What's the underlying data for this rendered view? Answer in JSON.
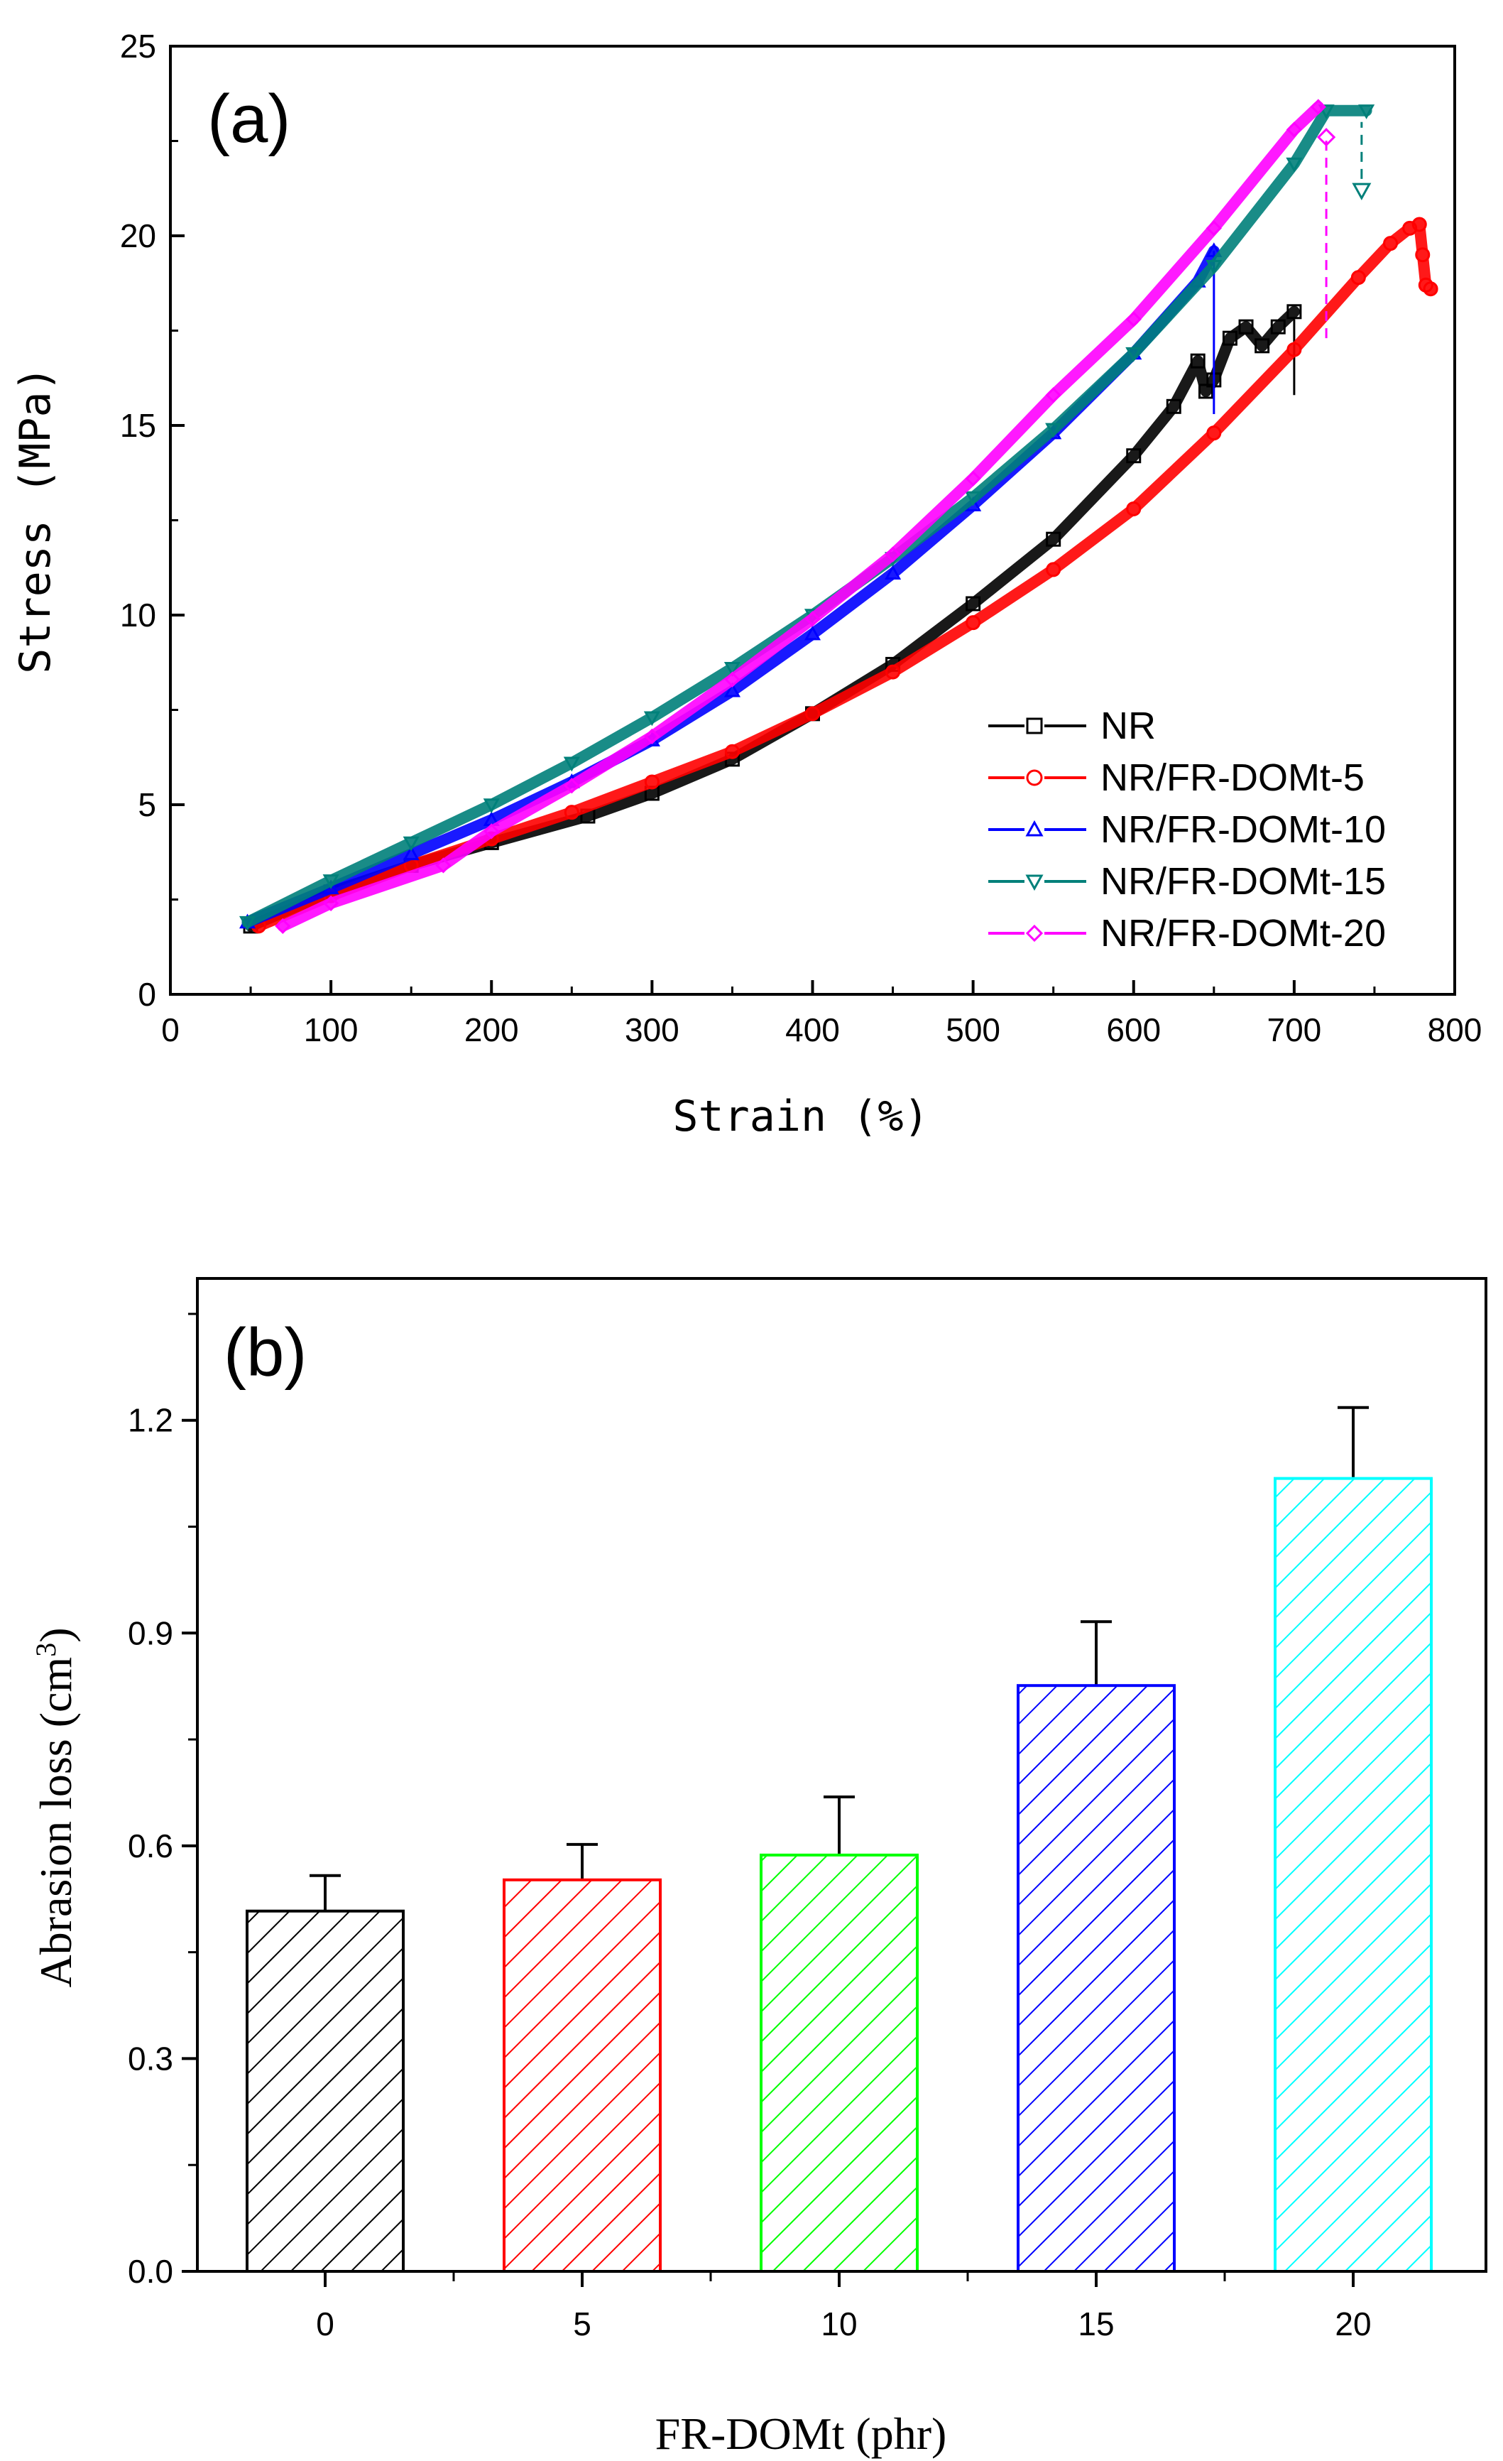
{
  "chart_data": [
    {
      "type": "line",
      "panel_label": "(a)",
      "xlabel": "Strain (%)",
      "ylabel": "Stress (MPa)",
      "xlim": [
        0,
        800
      ],
      "ylim": [
        0,
        25
      ],
      "xticks": [
        "0",
        "100",
        "200",
        "300",
        "400",
        "500",
        "600",
        "700",
        "800"
      ],
      "yticks": [
        "0",
        "5",
        "10",
        "15",
        "20",
        "25"
      ],
      "legend_position": "bottom-right",
      "series": [
        {
          "name": "NR",
          "color": "#000000",
          "marker": "square",
          "x": [
            50,
            100,
            150,
            200,
            260,
            300,
            350,
            400,
            450,
            500,
            550,
            600,
            625,
            640,
            645,
            650,
            660,
            670,
            680,
            690,
            700
          ],
          "y": [
            1.8,
            2.7,
            3.4,
            4.0,
            4.7,
            5.3,
            6.2,
            7.4,
            8.7,
            10.3,
            12.0,
            14.2,
            15.5,
            16.7,
            15.9,
            16.2,
            17.3,
            17.6,
            17.1,
            17.6,
            18.0
          ],
          "break_x": 700,
          "break_y": [
            15.8,
            17.8
          ]
        },
        {
          "name": "NR/FR-DOMt-5",
          "color": "#ff0000",
          "marker": "circle",
          "x": [
            55,
            100,
            150,
            200,
            250,
            300,
            350,
            400,
            450,
            500,
            550,
            600,
            650,
            700,
            740,
            760,
            772,
            778,
            780,
            782,
            785
          ],
          "y": [
            1.8,
            2.6,
            3.4,
            4.1,
            4.8,
            5.6,
            6.4,
            7.4,
            8.5,
            9.8,
            11.2,
            12.8,
            14.8,
            17.0,
            18.9,
            19.8,
            20.2,
            20.3,
            19.5,
            18.7,
            18.6
          ]
        },
        {
          "name": "NR/FR-DOMt-10",
          "color": "#0000ff",
          "marker": "triangle-up",
          "x": [
            48,
            100,
            150,
            200,
            250,
            300,
            350,
            400,
            450,
            500,
            550,
            600,
            640,
            650
          ],
          "y": [
            1.9,
            2.8,
            3.7,
            4.6,
            5.6,
            6.7,
            8.0,
            9.5,
            11.1,
            12.9,
            14.8,
            16.9,
            18.8,
            19.6
          ],
          "break_x": 650,
          "break_y": [
            15.3,
            19.6
          ]
        },
        {
          "name": "NR/FR-DOMt-15",
          "color": "#00807a",
          "marker": "triangle-down",
          "x": [
            48,
            100,
            150,
            200,
            250,
            300,
            350,
            400,
            450,
            500,
            550,
            600,
            650,
            700,
            720,
            745
          ],
          "y": [
            1.9,
            3.0,
            4.0,
            5.0,
            6.1,
            7.3,
            8.6,
            10.0,
            11.5,
            13.1,
            14.9,
            16.9,
            19.2,
            21.9,
            23.3,
            23.3
          ],
          "break_x": 742,
          "break_y": [
            21.5,
            23.0
          ],
          "break_marker_y": 21.2
        },
        {
          "name": "NR/FR-DOMt-20",
          "color": "#ff00ff",
          "marker": "diamond",
          "x": [
            70,
            100,
            170,
            200,
            250,
            300,
            350,
            400,
            450,
            500,
            550,
            600,
            650,
            700,
            715
          ],
          "y": [
            1.8,
            2.4,
            3.4,
            4.3,
            5.5,
            6.8,
            8.3,
            9.9,
            11.6,
            13.6,
            15.8,
            17.8,
            20.2,
            22.8,
            23.4
          ],
          "break_x": 720,
          "break_y": [
            17.3,
            22.6
          ],
          "break_marker_y": 22.6
        }
      ]
    },
    {
      "type": "bar",
      "panel_label": "(b)",
      "xlabel": "FR-DOMt (phr)",
      "ylabel": "Abrasion loss (cm",
      "ylabel_sup": "3",
      "ylabel_close": ")",
      "categories": [
        "0",
        "5",
        "10",
        "15",
        "20"
      ],
      "values": [
        0.508,
        0.552,
        0.587,
        0.826,
        1.118
      ],
      "errors": [
        0.05,
        0.05,
        0.082,
        0.09,
        0.1
      ],
      "colors": [
        "#000000",
        "#ff0000",
        "#00ff00",
        "#0000ff",
        "#00ffff"
      ],
      "hatch": "diagonal",
      "ylim": [
        0,
        1.4
      ],
      "yticks": [
        "0.0",
        "0.3",
        "0.6",
        "0.9",
        "1.2"
      ]
    }
  ]
}
